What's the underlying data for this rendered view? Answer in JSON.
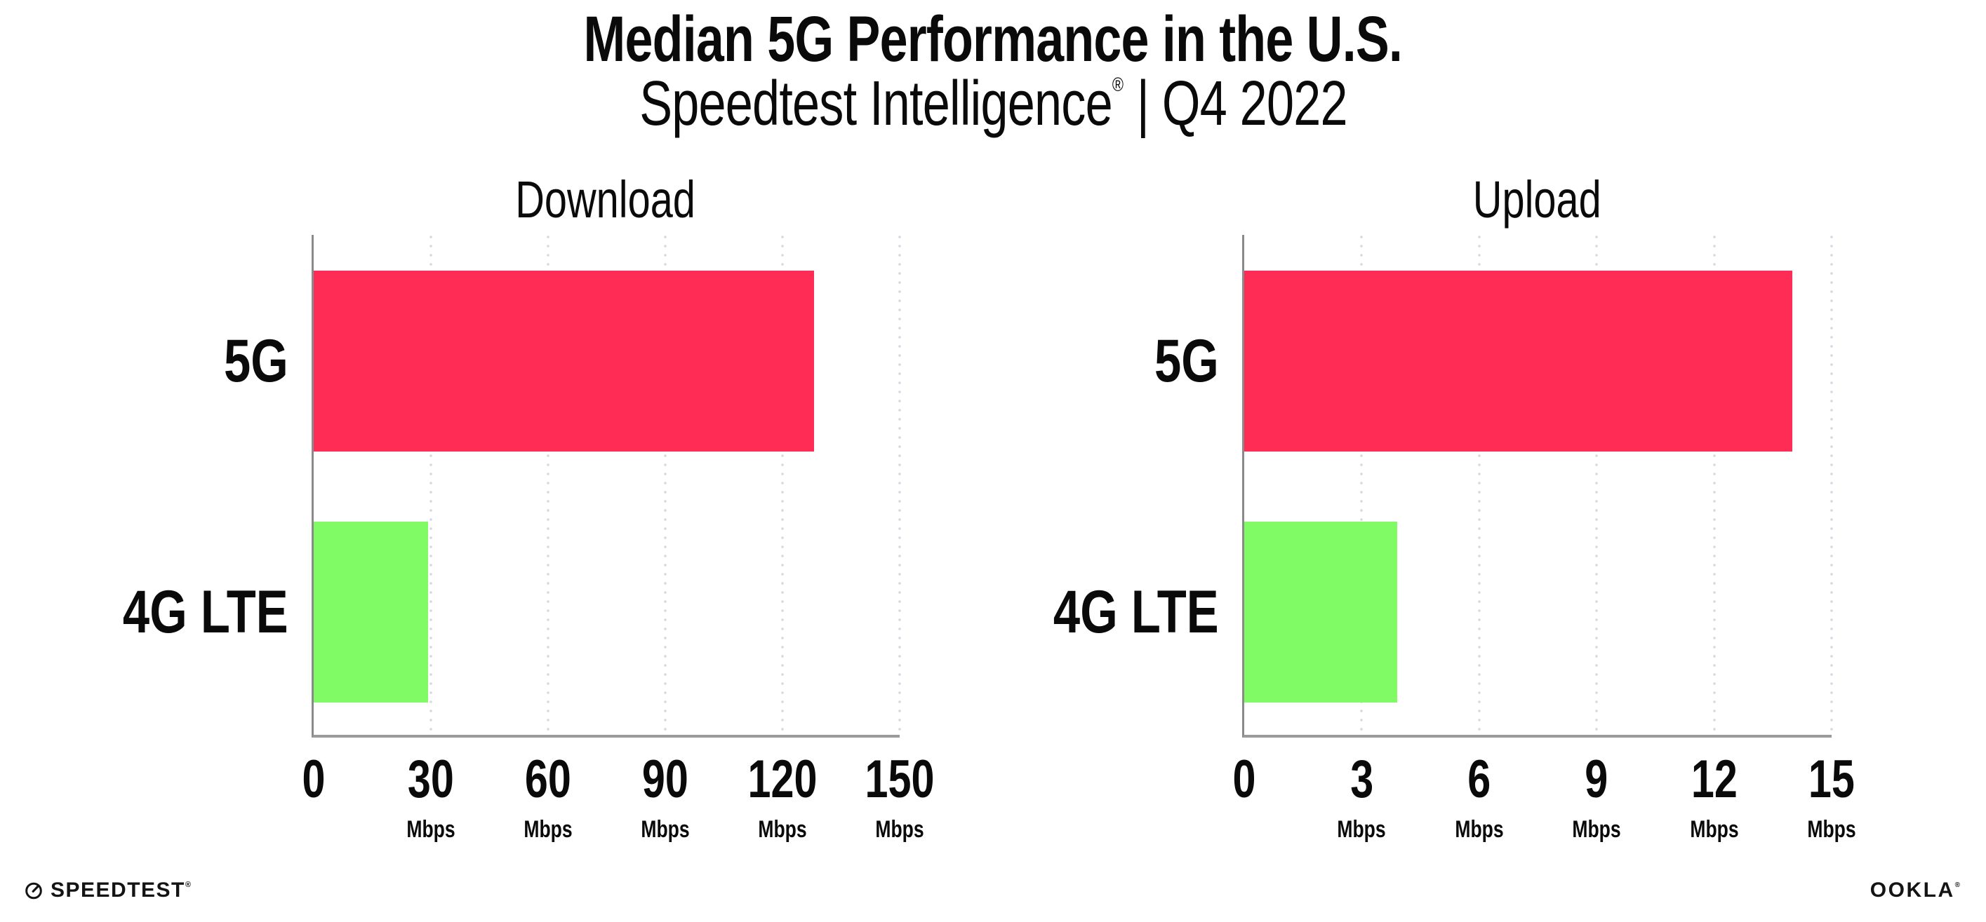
{
  "header": {
    "title": "Median 5G Performance in the U.S.",
    "subtitle_brand": "Speedtest Intelligence",
    "subtitle_registered": "®",
    "subtitle_rest": " | Q4 2022"
  },
  "colors": {
    "bar_5g": "#FF2D55",
    "bar_4g_lte": "#80FB66",
    "axis_line": "#8a8a8a",
    "gridline_dot": "#d9d9e3",
    "text": "#0a0a0a"
  },
  "chart_data": [
    {
      "type": "bar",
      "orientation": "horizontal",
      "title": "Download",
      "categories": [
        "5G",
        "4G LTE"
      ],
      "values": [
        128,
        29.3
      ],
      "unit": "Mbps",
      "xlim": [
        0,
        150
      ],
      "ticks": [
        0,
        30,
        60,
        90,
        120,
        150
      ],
      "tick_labels": [
        "0",
        "30",
        "60",
        "90",
        "120",
        "150"
      ],
      "grid": "dotted-vertical",
      "legend": "none",
      "bar_colors": [
        "#FF2D55",
        "#80FB66"
      ]
    },
    {
      "type": "bar",
      "orientation": "horizontal",
      "title": "Upload",
      "categories": [
        "5G",
        "4G LTE"
      ],
      "values": [
        14,
        3.9
      ],
      "unit": "Mbps",
      "xlim": [
        0,
        15
      ],
      "ticks": [
        0,
        3,
        6,
        9,
        12,
        15
      ],
      "tick_labels": [
        "0",
        "3",
        "6",
        "9",
        "12",
        "15"
      ],
      "grid": "dotted-vertical",
      "legend": "none",
      "bar_colors": [
        "#FF2D55",
        "#80FB66"
      ]
    }
  ],
  "footer": {
    "speedtest_label": "SPEEDTEST",
    "speedtest_registered": "®",
    "ookla_label": "OOKLA",
    "ookla_registered": "®"
  }
}
